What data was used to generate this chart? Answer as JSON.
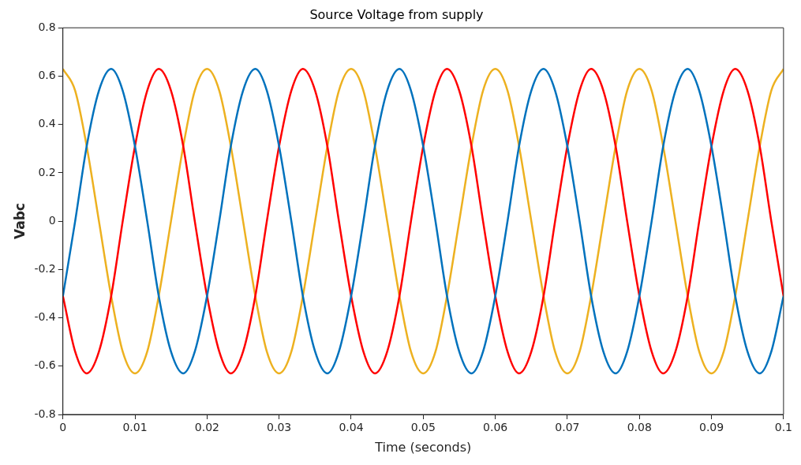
{
  "chart_data": {
    "type": "line",
    "title": "Source Voltage from supply",
    "xlabel": "Time (seconds)",
    "ylabel": "Vabc",
    "x": [
      0,
      0.0017,
      0.0033,
      0.005,
      0.0067,
      0.0083,
      0.01,
      0.0117,
      0.0133,
      0.015,
      0.0167,
      0.0183,
      0.02,
      0.0217,
      0.0233,
      0.025,
      0.0267,
      0.0283,
      0.03,
      0.0317,
      0.0333,
      0.035,
      0.0367,
      0.0383,
      0.04,
      0.0417,
      0.0433,
      0.045,
      0.0467,
      0.0483,
      0.05,
      0.0517,
      0.0533,
      0.055,
      0.0567,
      0.0583,
      0.06,
      0.0617,
      0.0633,
      0.065,
      0.0667,
      0.0683,
      0.07,
      0.0717,
      0.0733,
      0.075,
      0.0767,
      0.0783,
      0.08,
      0.0817,
      0.0833,
      0.085,
      0.0867,
      0.0883,
      0.09,
      0.0917,
      0.0933,
      0.095,
      0.0967,
      0.0983,
      0.1
    ],
    "series": [
      {
        "color": "#0072bd",
        "values": [
          -0.31,
          0,
          0.31,
          0.54,
          0.63,
          0.54,
          0.31,
          0,
          -0.31,
          -0.54,
          -0.63,
          -0.54,
          -0.31,
          0,
          0.31,
          0.54,
          0.63,
          0.54,
          0.31,
          0,
          -0.31,
          -0.54,
          -0.63,
          -0.54,
          -0.31,
          0,
          0.31,
          0.54,
          0.63,
          0.54,
          0.31,
          0,
          -0.31,
          -0.54,
          -0.63,
          -0.54,
          -0.31,
          0,
          0.31,
          0.54,
          0.63,
          0.54,
          0.31,
          0,
          -0.31,
          -0.54,
          -0.63,
          -0.54,
          -0.31,
          0,
          0.31,
          0.54,
          0.63,
          0.54,
          0.31,
          0,
          -0.31,
          -0.54,
          -0.63,
          -0.54,
          -0.31
        ]
      },
      {
        "color": "#ff0000",
        "values": [
          -0.31,
          -0.54,
          -0.63,
          -0.54,
          -0.31,
          0,
          0.31,
          0.54,
          0.63,
          0.54,
          0.31,
          0,
          -0.31,
          -0.54,
          -0.63,
          -0.54,
          -0.31,
          0,
          0.31,
          0.54,
          0.63,
          0.54,
          0.31,
          0,
          -0.31,
          -0.54,
          -0.63,
          -0.54,
          -0.31,
          0,
          0.31,
          0.54,
          0.63,
          0.54,
          0.31,
          0,
          -0.31,
          -0.54,
          -0.63,
          -0.54,
          -0.31,
          0,
          0.31,
          0.54,
          0.63,
          0.54,
          0.31,
          0,
          -0.31,
          -0.54,
          -0.63,
          -0.54,
          -0.31,
          0,
          0.31,
          0.54,
          0.63,
          0.54,
          0.31,
          0,
          -0.31
        ]
      },
      {
        "color": "#edb120",
        "values": [
          0.63,
          0.54,
          0.31,
          0,
          -0.31,
          -0.54,
          -0.63,
          -0.54,
          -0.31,
          0,
          0.31,
          0.54,
          0.63,
          0.54,
          0.31,
          0,
          -0.31,
          -0.54,
          -0.63,
          -0.54,
          -0.31,
          0,
          0.31,
          0.54,
          0.63,
          0.54,
          0.31,
          0,
          -0.31,
          -0.54,
          -0.63,
          -0.54,
          -0.31,
          0,
          0.31,
          0.54,
          0.63,
          0.54,
          0.31,
          0,
          -0.31,
          -0.54,
          -0.63,
          -0.54,
          -0.31,
          0,
          0.31,
          0.54,
          0.63,
          0.54,
          0.31,
          0,
          -0.31,
          -0.54,
          -0.63,
          -0.54,
          -0.31,
          0,
          0.31,
          0.54,
          0.63
        ]
      }
    ],
    "xlim": [
      0,
      0.1
    ],
    "xticks": [
      0,
      0.01,
      0.02,
      0.03,
      0.04,
      0.05,
      0.06,
      0.07,
      0.08,
      0.09,
      0.1
    ],
    "ylim": [
      -0.8,
      0.8
    ],
    "yticks": [
      -0.8,
      -0.6,
      -0.4,
      -0.2,
      0,
      0.2,
      0.4,
      0.6,
      0.8
    ],
    "grid": false,
    "legend": false
  }
}
